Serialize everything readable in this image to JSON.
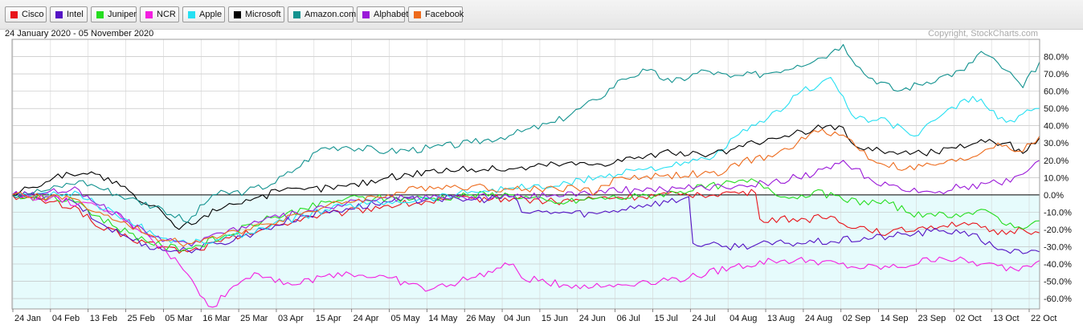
{
  "legend": [
    {
      "label": "Cisco",
      "color": "#e8141a"
    },
    {
      "label": "Intel",
      "color": "#5412c4"
    },
    {
      "label": "Juniper",
      "color": "#25dd1f"
    },
    {
      "label": "NCR",
      "color": "#f31ee0"
    },
    {
      "label": "Apple",
      "color": "#25e0f2"
    },
    {
      "label": "Microsoft",
      "color": "#000000"
    },
    {
      "label": "Amazon.com",
      "color": "#12928f"
    },
    {
      "label": "Alphabet",
      "color": "#9a19d8"
    },
    {
      "label": "Facebook",
      "color": "#ed6a1b"
    }
  ],
  "chart_data": {
    "type": "line",
    "date_range": "24 January 2020 - 05 November 2020",
    "copyright": "Copyright, StockCharts.com",
    "x_tick_labels": [
      "24 Jan",
      "04 Feb",
      "13 Feb",
      "25 Feb",
      "05 Mar",
      "16 Mar",
      "25 Mar",
      "03 Apr",
      "15 Apr",
      "24 Apr",
      "05 May",
      "14 May",
      "26 May",
      "04 Jun",
      "15 Jun",
      "24 Jun",
      "06 Jul",
      "15 Jul",
      "24 Jul",
      "04 Aug",
      "13 Aug",
      "24 Aug",
      "02 Sep",
      "14 Sep",
      "23 Sep",
      "02 Oct",
      "13 Oct",
      "22 Oct"
    ],
    "y_tick_labels": [
      "80.0%",
      "70.0%",
      "60.0%",
      "50.0%",
      "40.0%",
      "30.0%",
      "20.0%",
      "10.0%",
      "0.0%",
      "-10.0%",
      "-20.0%",
      "-30.0%",
      "-40.0%",
      "-50.0%",
      "-60.0%"
    ],
    "y_ticks": [
      80,
      70,
      60,
      50,
      40,
      30,
      20,
      10,
      0,
      -10,
      -20,
      -30,
      -40,
      -50,
      -60
    ],
    "ylim": [
      -66,
      90
    ],
    "grid": true,
    "legend_position": "top",
    "series": [
      {
        "name": "Cisco",
        "color": "#e8141a",
        "points": [
          [
            0,
            0
          ],
          [
            3,
            -2
          ],
          [
            9,
            -4
          ],
          [
            16,
            -8
          ],
          [
            20,
            -18
          ],
          [
            28,
            -25
          ],
          [
            36,
            -30
          ],
          [
            42,
            -33
          ],
          [
            50,
            -27
          ],
          [
            60,
            -20
          ],
          [
            70,
            -13
          ],
          [
            80,
            -10
          ],
          [
            90,
            -6
          ],
          [
            100,
            -4
          ],
          [
            110,
            -2
          ],
          [
            120,
            -2
          ],
          [
            130,
            -4
          ],
          [
            140,
            -2
          ],
          [
            150,
            -1
          ],
          [
            160,
            0
          ],
          [
            170,
            1
          ],
          [
            178,
            1
          ],
          [
            179,
            -14
          ],
          [
            190,
            -14
          ],
          [
            197,
            -13
          ],
          [
            198,
            -16
          ],
          [
            210,
            -22
          ],
          [
            220,
            -18
          ],
          [
            228,
            -16
          ],
          [
            236,
            -23
          ],
          [
            242,
            -20
          ],
          [
            246,
            -22
          ]
        ]
      },
      {
        "name": "Intel",
        "color": "#5412c4",
        "points": [
          [
            0,
            0
          ],
          [
            9,
            -1
          ],
          [
            16,
            -6
          ],
          [
            20,
            -15
          ],
          [
            28,
            -25
          ],
          [
            36,
            -32
          ],
          [
            42,
            -32
          ],
          [
            50,
            -28
          ],
          [
            60,
            -20
          ],
          [
            70,
            -12
          ],
          [
            80,
            -8
          ],
          [
            90,
            -4
          ],
          [
            100,
            -2
          ],
          [
            110,
            -3
          ],
          [
            120,
            -1
          ],
          [
            122,
            -10
          ],
          [
            130,
            -10
          ],
          [
            140,
            -11
          ],
          [
            150,
            -6
          ],
          [
            160,
            -3
          ],
          [
            162,
            -1
          ],
          [
            163,
            -28
          ],
          [
            170,
            -30
          ],
          [
            185,
            -28
          ],
          [
            196,
            -27
          ],
          [
            210,
            -24
          ],
          [
            222,
            -21
          ],
          [
            228,
            -21
          ],
          [
            235,
            -30
          ],
          [
            242,
            -34
          ],
          [
            246,
            -33
          ]
        ]
      },
      {
        "name": "Juniper",
        "color": "#25dd1f",
        "points": [
          [
            0,
            0
          ],
          [
            9,
            -2
          ],
          [
            16,
            -4
          ],
          [
            20,
            -12
          ],
          [
            28,
            -22
          ],
          [
            36,
            -30
          ],
          [
            42,
            -31
          ],
          [
            50,
            -25
          ],
          [
            60,
            -15
          ],
          [
            70,
            -8
          ],
          [
            80,
            -2
          ],
          [
            90,
            -2
          ],
          [
            100,
            -2
          ],
          [
            110,
            0
          ],
          [
            120,
            0
          ],
          [
            130,
            -5
          ],
          [
            140,
            -2
          ],
          [
            150,
            -1
          ],
          [
            160,
            2
          ],
          [
            170,
            6
          ],
          [
            178,
            8
          ],
          [
            186,
            -2
          ],
          [
            192,
            2
          ],
          [
            199,
            -3
          ],
          [
            210,
            -5
          ],
          [
            218,
            -13
          ],
          [
            226,
            -11
          ],
          [
            234,
            -10
          ],
          [
            240,
            -19
          ],
          [
            246,
            -15
          ]
        ]
      },
      {
        "name": "NCR",
        "color": "#f31ee0",
        "points": [
          [
            0,
            0
          ],
          [
            9,
            -2
          ],
          [
            16,
            -5
          ],
          [
            24,
            -10
          ],
          [
            32,
            -22
          ],
          [
            40,
            -40
          ],
          [
            46,
            -60
          ],
          [
            48,
            -65
          ],
          [
            52,
            -55
          ],
          [
            58,
            -45
          ],
          [
            68,
            -52
          ],
          [
            78,
            -45
          ],
          [
            90,
            -48
          ],
          [
            100,
            -55
          ],
          [
            110,
            -48
          ],
          [
            120,
            -40
          ],
          [
            122,
            -48
          ],
          [
            132,
            -52
          ],
          [
            142,
            -53
          ],
          [
            152,
            -50
          ],
          [
            162,
            -48
          ],
          [
            172,
            -42
          ],
          [
            182,
            -38
          ],
          [
            192,
            -38
          ],
          [
            202,
            -42
          ],
          [
            212,
            -42
          ],
          [
            222,
            -36
          ],
          [
            232,
            -40
          ],
          [
            240,
            -43
          ],
          [
            246,
            -38
          ]
        ]
      },
      {
        "name": "Apple",
        "color": "#25e0f2",
        "points": [
          [
            0,
            0
          ],
          [
            9,
            0
          ],
          [
            16,
            1
          ],
          [
            20,
            -5
          ],
          [
            28,
            -15
          ],
          [
            36,
            -25
          ],
          [
            42,
            -28
          ],
          [
            50,
            -26
          ],
          [
            60,
            -19
          ],
          [
            70,
            -12
          ],
          [
            80,
            -6
          ],
          [
            90,
            -4
          ],
          [
            100,
            -2
          ],
          [
            110,
            2
          ],
          [
            120,
            4
          ],
          [
            130,
            5
          ],
          [
            140,
            10
          ],
          [
            150,
            15
          ],
          [
            160,
            17
          ],
          [
            168,
            22
          ],
          [
            174,
            35
          ],
          [
            180,
            42
          ],
          [
            188,
            58
          ],
          [
            196,
            68
          ],
          [
            202,
            44
          ],
          [
            210,
            42
          ],
          [
            216,
            34
          ],
          [
            222,
            45
          ],
          [
            230,
            57
          ],
          [
            238,
            42
          ],
          [
            246,
            50
          ]
        ]
      },
      {
        "name": "Microsoft",
        "color": "#000000",
        "points": [
          [
            0,
            0
          ],
          [
            4,
            4
          ],
          [
            9,
            8
          ],
          [
            13,
            13
          ],
          [
            20,
            12
          ],
          [
            26,
            5
          ],
          [
            30,
            -3
          ],
          [
            36,
            -10
          ],
          [
            40,
            -20
          ],
          [
            46,
            -12
          ],
          [
            52,
            -5
          ],
          [
            58,
            -2
          ],
          [
            64,
            2
          ],
          [
            70,
            3
          ],
          [
            80,
            5
          ],
          [
            90,
            10
          ],
          [
            100,
            14
          ],
          [
            110,
            15
          ],
          [
            120,
            15
          ],
          [
            130,
            18
          ],
          [
            140,
            18
          ],
          [
            150,
            22
          ],
          [
            160,
            25
          ],
          [
            166,
            22
          ],
          [
            172,
            26
          ],
          [
            178,
            30
          ],
          [
            184,
            33
          ],
          [
            192,
            38
          ],
          [
            198,
            40
          ],
          [
            202,
            28
          ],
          [
            210,
            25
          ],
          [
            218,
            24
          ],
          [
            226,
            27
          ],
          [
            232,
            32
          ],
          [
            238,
            30
          ],
          [
            242,
            24
          ],
          [
            246,
            33
          ]
        ]
      },
      {
        "name": "Amazon.com",
        "color": "#12928f",
        "points": [
          [
            0,
            0
          ],
          [
            9,
            3
          ],
          [
            16,
            8
          ],
          [
            20,
            5
          ],
          [
            28,
            -2
          ],
          [
            36,
            -8
          ],
          [
            42,
            -16
          ],
          [
            48,
            0
          ],
          [
            56,
            2
          ],
          [
            62,
            6
          ],
          [
            68,
            15
          ],
          [
            74,
            27
          ],
          [
            80,
            28
          ],
          [
            90,
            25
          ],
          [
            100,
            27
          ],
          [
            110,
            30
          ],
          [
            120,
            35
          ],
          [
            130,
            42
          ],
          [
            140,
            55
          ],
          [
            146,
            67
          ],
          [
            152,
            72
          ],
          [
            158,
            65
          ],
          [
            166,
            72
          ],
          [
            172,
            68
          ],
          [
            180,
            70
          ],
          [
            188,
            75
          ],
          [
            196,
            82
          ],
          [
            199,
            87
          ],
          [
            204,
            70
          ],
          [
            212,
            60
          ],
          [
            222,
            68
          ],
          [
            228,
            72
          ],
          [
            232,
            83
          ],
          [
            238,
            72
          ],
          [
            242,
            62
          ],
          [
            246,
            77
          ]
        ]
      },
      {
        "name": "Alphabet",
        "color": "#9a19d8",
        "points": [
          [
            0,
            0
          ],
          [
            9,
            2
          ],
          [
            16,
            3
          ],
          [
            20,
            -5
          ],
          [
            28,
            -16
          ],
          [
            36,
            -27
          ],
          [
            42,
            -28
          ],
          [
            50,
            -22
          ],
          [
            60,
            -15
          ],
          [
            70,
            -10
          ],
          [
            80,
            -5
          ],
          [
            90,
            -2
          ],
          [
            100,
            -2
          ],
          [
            110,
            -1
          ],
          [
            120,
            -1
          ],
          [
            130,
            0
          ],
          [
            140,
            2
          ],
          [
            150,
            3
          ],
          [
            160,
            4
          ],
          [
            170,
            5
          ],
          [
            180,
            7
          ],
          [
            188,
            10
          ],
          [
            196,
            15
          ],
          [
            199,
            20
          ],
          [
            206,
            8
          ],
          [
            214,
            2
          ],
          [
            222,
            2
          ],
          [
            228,
            5
          ],
          [
            236,
            7
          ],
          [
            242,
            12
          ],
          [
            246,
            20
          ]
        ]
      },
      {
        "name": "Facebook",
        "color": "#ed6a1b",
        "points": [
          [
            0,
            0
          ],
          [
            9,
            -1
          ],
          [
            16,
            -3
          ],
          [
            20,
            -10
          ],
          [
            28,
            -18
          ],
          [
            36,
            -26
          ],
          [
            42,
            -28
          ],
          [
            50,
            -24
          ],
          [
            60,
            -17
          ],
          [
            70,
            -10
          ],
          [
            80,
            -4
          ],
          [
            90,
            0
          ],
          [
            100,
            5
          ],
          [
            110,
            5
          ],
          [
            120,
            3
          ],
          [
            130,
            4
          ],
          [
            138,
            4
          ],
          [
            139,
            0
          ],
          [
            145,
            10
          ],
          [
            155,
            11
          ],
          [
            165,
            12
          ],
          [
            170,
            12
          ],
          [
            175,
            20
          ],
          [
            182,
            22
          ],
          [
            188,
            30
          ],
          [
            194,
            38
          ],
          [
            200,
            33
          ],
          [
            206,
            20
          ],
          [
            214,
            15
          ],
          [
            222,
            18
          ],
          [
            228,
            20
          ],
          [
            236,
            30
          ],
          [
            242,
            25
          ],
          [
            246,
            34
          ]
        ]
      }
    ]
  }
}
